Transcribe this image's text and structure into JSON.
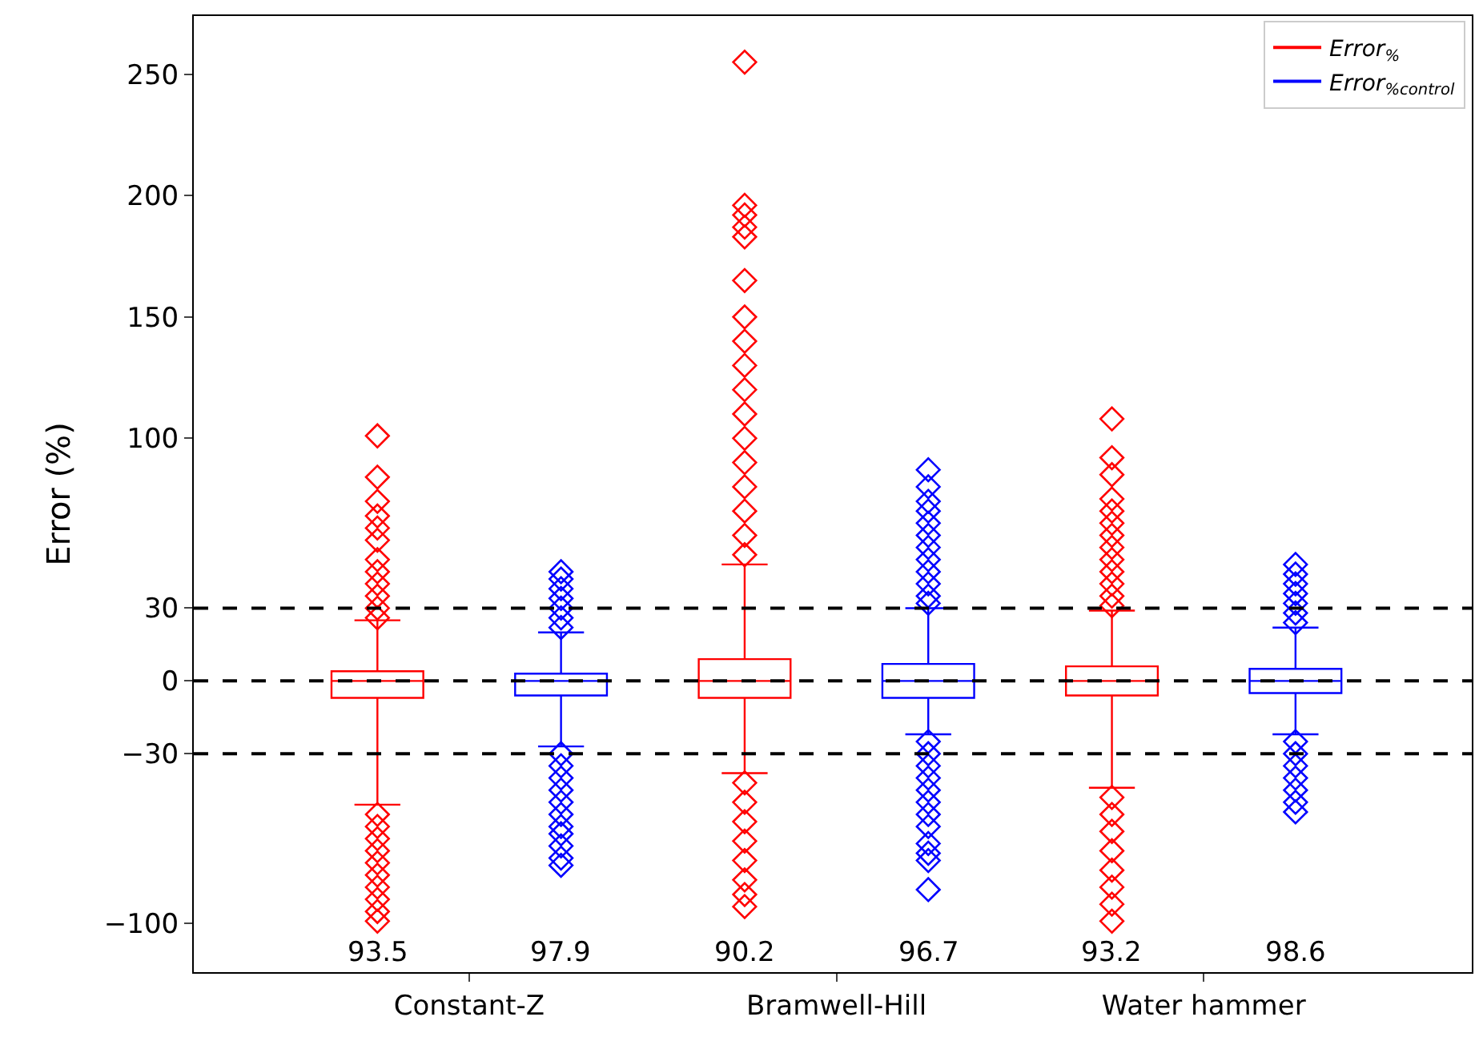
{
  "chart_data": {
    "type": "box",
    "categories": [
      "Constant-Z",
      "Bramwell-Hill",
      "Water hammer"
    ],
    "ylabel": "Error (%)",
    "ylim": [
      -120,
      274
    ],
    "yticks": [
      {
        "value": -100,
        "label": "−100"
      },
      {
        "value": -30,
        "label": "−30"
      },
      0,
      30,
      100,
      150,
      200,
      250
    ],
    "series": [
      {
        "name": "Error$_{%}$",
        "color": "#ff0000",
        "boxes": [
          {
            "low": -51,
            "q1": -7,
            "median": 0,
            "q3": 4,
            "high": 25,
            "outliers": [
              101,
              84,
              74,
              68,
              63,
              58,
              50,
              45,
              40,
              35,
              30,
              26,
              -55,
              -60,
              -65,
              -70,
              -75,
              -80,
              -85,
              -90,
              -95,
              -99
            ]
          },
          {
            "low": -38,
            "q1": -7,
            "median": 0,
            "q3": 9,
            "high": 48,
            "outliers": [
              255,
              196,
              192,
              187,
              183,
              165,
              150,
              140,
              130,
              120,
              110,
              100,
              90,
              80,
              70,
              60,
              52,
              -42,
              -50,
              -58,
              -66,
              -74,
              -82,
              -88,
              -93
            ]
          },
          {
            "low": -44,
            "q1": -6,
            "median": 0,
            "q3": 6,
            "high": 29,
            "outliers": [
              108,
              92,
              85,
              75,
              70,
              65,
              60,
              55,
              50,
              45,
              40,
              35,
              31,
              -48,
              -55,
              -62,
              -70,
              -78,
              -85,
              -92,
              -99
            ]
          }
        ]
      },
      {
        "name": "Error$_{%control}$",
        "color": "#0000ff",
        "boxes": [
          {
            "low": -27,
            "q1": -6,
            "median": 0,
            "q3": 3,
            "high": 20,
            "outliers": [
              45,
              42,
              38,
              34,
              30,
              26,
              22,
              -30,
              -35,
              -40,
              -45,
              -50,
              -55,
              -60,
              -63,
              -68,
              -73,
              -76
            ]
          },
          {
            "low": -22,
            "q1": -7,
            "median": 0,
            "q3": 7,
            "high": 30,
            "outliers": [
              87,
              80,
              74,
              70,
              65,
              60,
              55,
              50,
              45,
              40,
              35,
              32,
              -25,
              -30,
              -35,
              -40,
              -45,
              -50,
              -55,
              -60,
              -67,
              -71,
              -74,
              -86
            ]
          },
          {
            "low": -22,
            "q1": -5,
            "median": 0,
            "q3": 5,
            "high": 22,
            "outliers": [
              48,
              44,
              40,
              36,
              32,
              28,
              24,
              -25,
              -30,
              -35,
              -40,
              -45,
              -50,
              -54
            ]
          }
        ]
      }
    ],
    "annotations": [
      "93.5",
      "97.9",
      "90.2",
      "96.7",
      "93.2",
      "98.6"
    ],
    "ref_lines": [
      {
        "axis": "y",
        "value": 30,
        "color": "#000000",
        "line_style": "dashed"
      },
      {
        "axis": "y",
        "value": 0,
        "color": "#000000",
        "line_style": "dashed"
      },
      {
        "axis": "y",
        "value": -30,
        "color": "#000000",
        "line_style": "dashed"
      }
    ],
    "marker": "diamond",
    "legend": "top right"
  }
}
